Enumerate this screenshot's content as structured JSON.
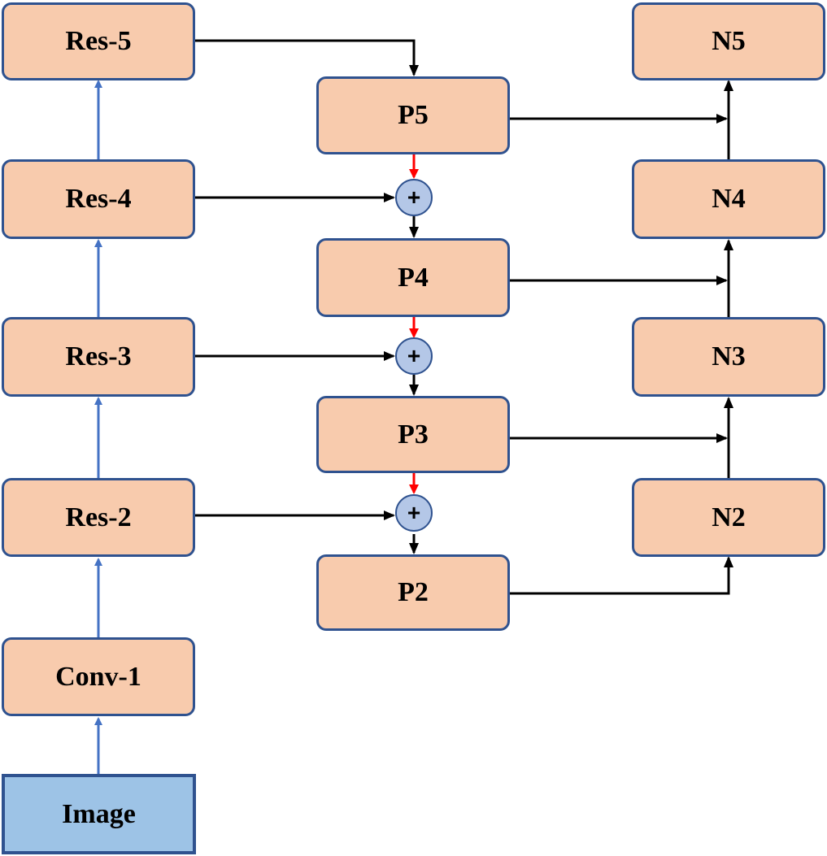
{
  "colors": {
    "node_fill": "#f8cbad",
    "node_border": "#2f528f",
    "input_fill": "#9dc3e6",
    "backbone_arrow": "#4472c4",
    "lateral_arrow": "#000000",
    "upsample_arrow": "#ff0000",
    "adder_fill": "#b4c7e7"
  },
  "backbone": {
    "input": "Image",
    "conv1": "Conv-1",
    "res2": "Res-2",
    "res3": "Res-3",
    "res4": "Res-4",
    "res5": "Res-5"
  },
  "fpn": {
    "p2": "P2",
    "p3": "P3",
    "p4": "P4",
    "p5": "P5"
  },
  "pan": {
    "n2": "N2",
    "n3": "N3",
    "n4": "N4",
    "n5": "N5"
  },
  "adder_symbol": "+"
}
